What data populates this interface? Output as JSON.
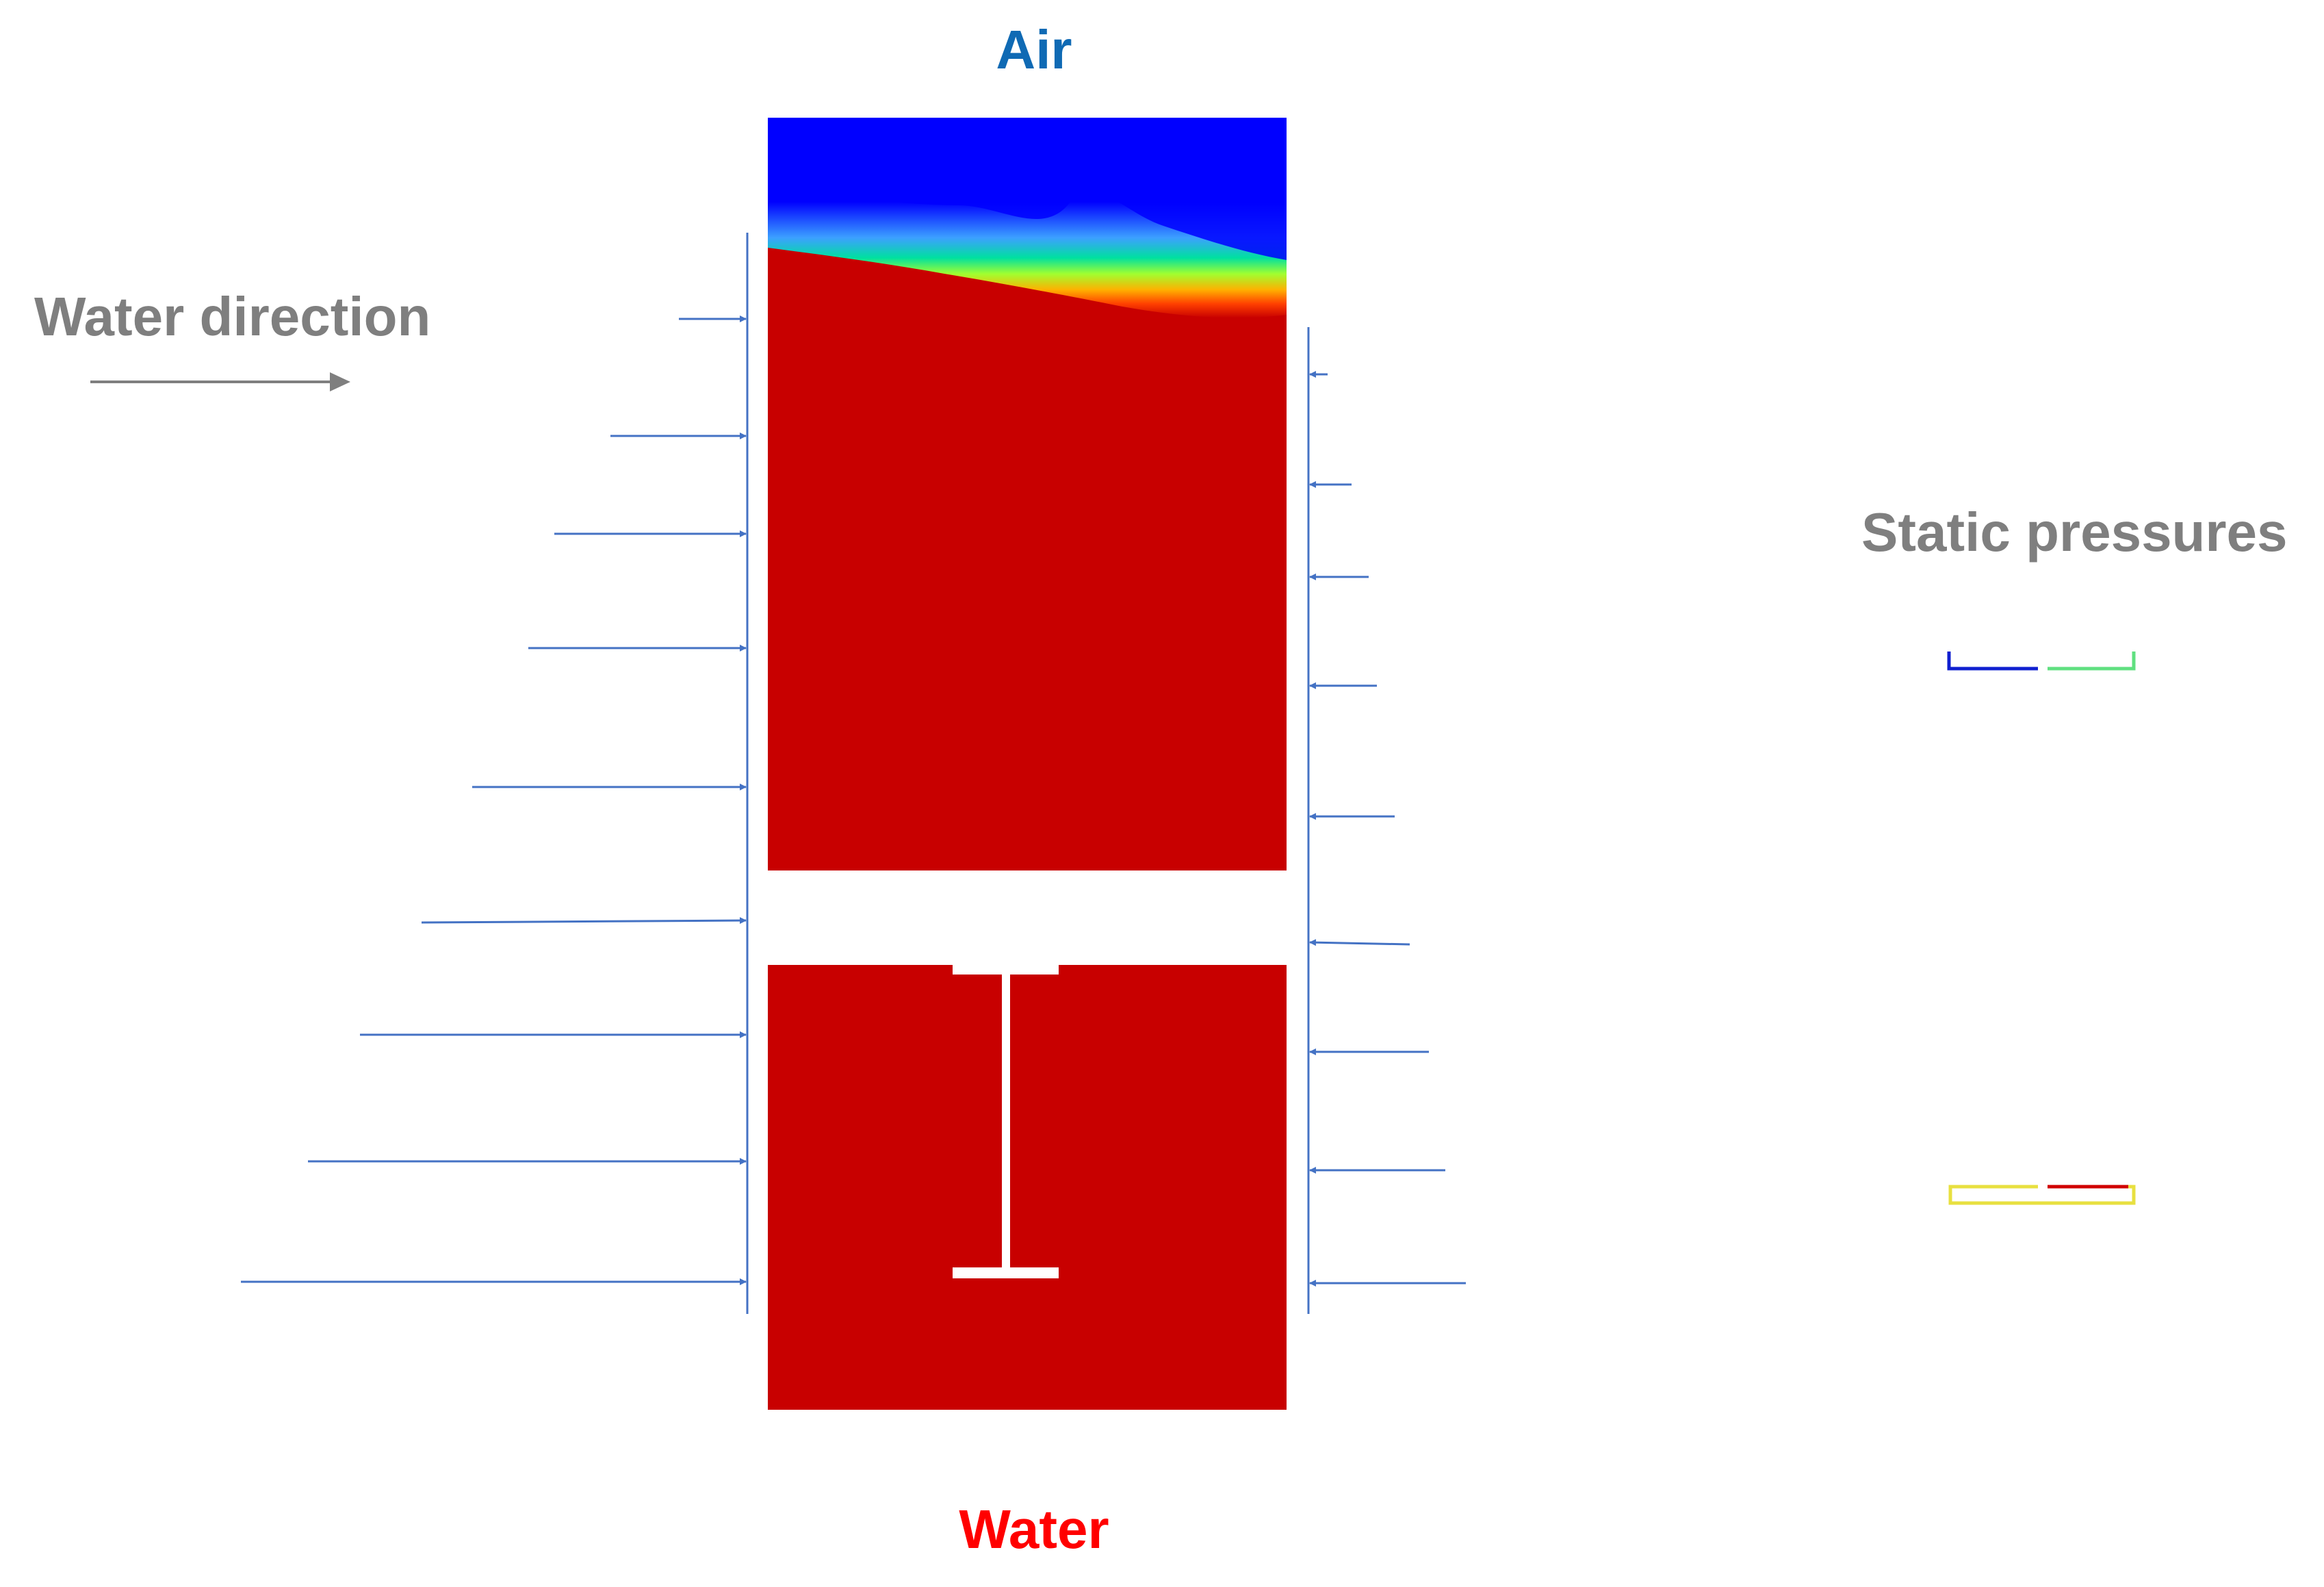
{
  "labels": {
    "air": "Air",
    "water": "Water",
    "water_direction": "Water direction",
    "static_pressures": "Static pressures"
  },
  "colors": {
    "air_label": "#0f6ab4",
    "water_label": "#ff0000",
    "gray_label": "#7f7f7f",
    "water_phase": "#c80000",
    "air_phase": "#0000ff",
    "pressure_arrows": "#4472c4",
    "direction_arrow": "#7f7f7f"
  },
  "icons": {
    "direction": "arrow-right-icon",
    "beam": "i-beam-icon"
  }
}
